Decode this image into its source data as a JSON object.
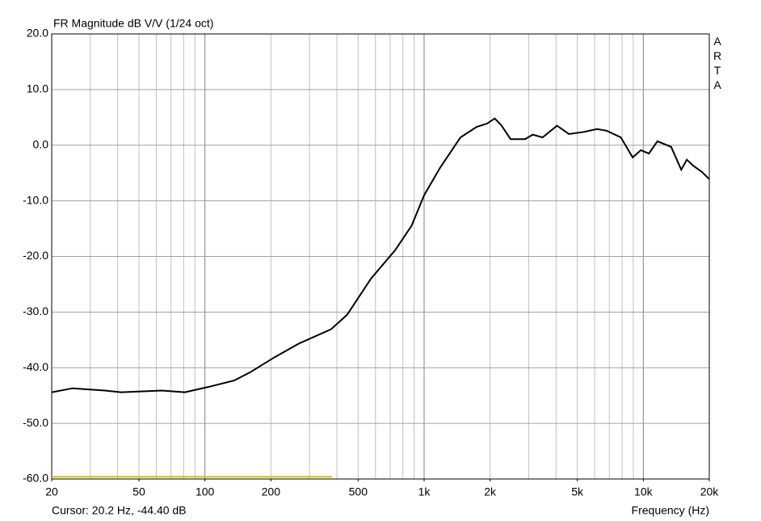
{
  "chart_data": {
    "type": "line",
    "title": "FR Magnitude dB V/V (1/24 oct)",
    "watermark": "ARTA",
    "cursor": "Cursor: 20.2 Hz, -44.40 dB",
    "x_label": "Frequency (Hz)",
    "log_x": true,
    "grid": true,
    "xlim": [
      20,
      20000
    ],
    "ylim": [
      -60,
      20
    ],
    "xticks": [
      20,
      50,
      100,
      200,
      500,
      {
        "value": 1000,
        "label": "1k"
      },
      {
        "value": 2000,
        "label": "2k"
      },
      {
        "value": 5000,
        "label": "5k"
      },
      {
        "value": 10000,
        "label": "10k"
      },
      {
        "value": 20000,
        "label": "20k"
      }
    ],
    "yticks": [
      {
        "value": 20,
        "label": "20.0"
      },
      {
        "value": 10,
        "label": "10.0"
      },
      {
        "value": 0,
        "label": "0.0"
      },
      {
        "value": -10,
        "label": "-10.0"
      },
      {
        "value": -20,
        "label": "-20.0"
      },
      {
        "value": -30,
        "label": "-30.0"
      },
      {
        "value": -40,
        "label": "-40.0"
      },
      {
        "value": -50,
        "label": "-50.0"
      },
      {
        "value": -60,
        "label": "-60.0"
      }
    ],
    "series": [
      {
        "color": "#000000",
        "x": [
          20,
          24.9,
          35,
          41.5,
          63.5,
          81,
          105,
          136,
          161,
          208,
          267,
          376,
          445,
          572,
          737,
          876,
          1000,
          1185,
          1465,
          1737,
          1940,
          2100,
          2250,
          2480,
          2890,
          3130,
          3470,
          4040,
          4580,
          5390,
          6150,
          6800,
          7900,
          8950,
          9750,
          10600,
          11600,
          13400,
          14900,
          15800,
          16900,
          18500,
          20000
        ],
        "values": [
          -44.4,
          -43.7,
          -44.1,
          -44.4,
          -44.1,
          -44.4,
          -43.4,
          -42.3,
          -40.8,
          -38.1,
          -35.7,
          -33.1,
          -30.5,
          -24,
          -18.9,
          -14.5,
          -9,
          -4,
          1.4,
          3.3,
          3.9,
          4.8,
          3.6,
          1.1,
          1.1,
          1.9,
          1.4,
          3.5,
          2.0,
          2.4,
          2.9,
          2.6,
          1.4,
          -2.2,
          -0.9,
          -1.5,
          0.7,
          -0.3,
          -4.4,
          -2.6,
          -3.7,
          -4.8,
          -6.1
        ]
      },
      {
        "color": "#c8c800",
        "x": [
          20,
          380
        ],
        "values": [
          -59.6,
          -59.6
        ]
      }
    ]
  }
}
